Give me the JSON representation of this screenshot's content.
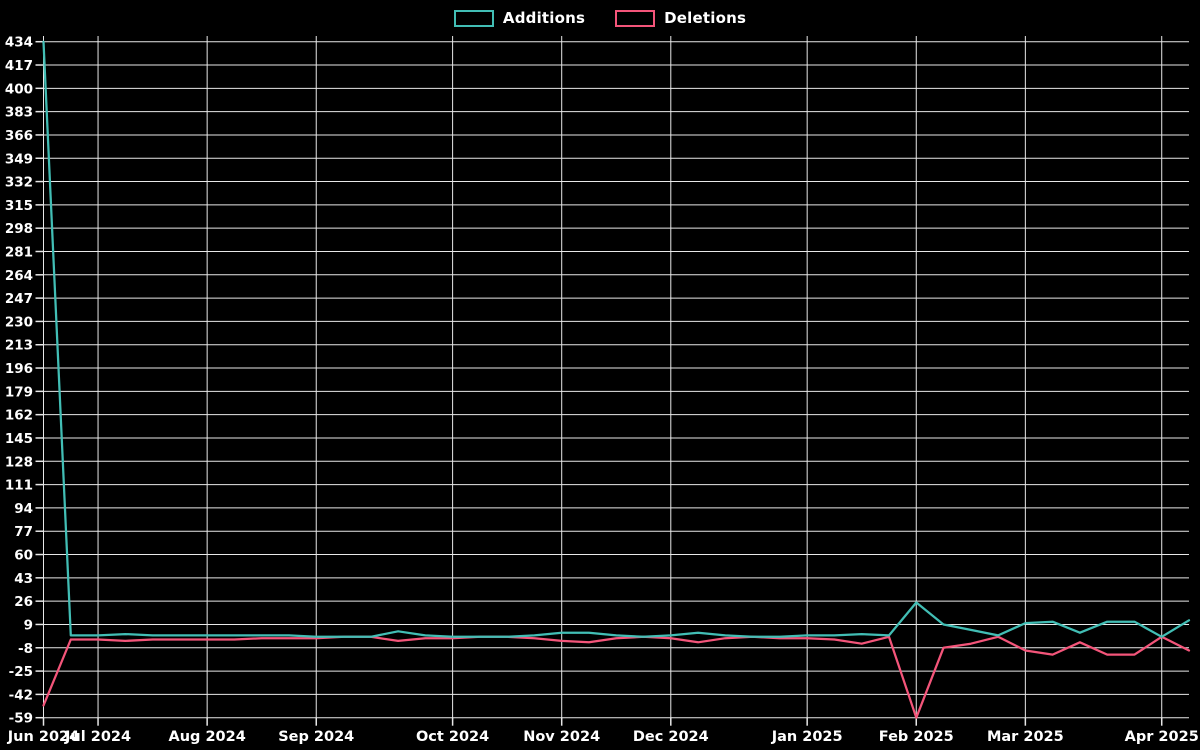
{
  "chart": {
    "background": "#000000",
    "grid_color": "#e8e8e8",
    "text_color": "#ffffff",
    "additions_color": "#42beb5",
    "deletions_color": "#f4557a"
  },
  "legend": {
    "items": [
      {
        "label": "Additions",
        "color": "#42beb5"
      },
      {
        "label": "Deletions",
        "color": "#f4557a"
      }
    ]
  },
  "chart_data": {
    "type": "line",
    "title": "",
    "xlabel": "",
    "ylabel": "",
    "grid": true,
    "legend_position": "top-center",
    "x_unit": "week",
    "ylim": [
      -59,
      434
    ],
    "y_tick_step": 17,
    "y_ticks": [
      434,
      417,
      400,
      383,
      366,
      349,
      332,
      315,
      298,
      281,
      264,
      247,
      230,
      213,
      196,
      179,
      162,
      145,
      128,
      111,
      94,
      77,
      60,
      43,
      26,
      9,
      -8,
      -25,
      -42,
      -59
    ],
    "x_ticks": [
      {
        "label": "Jun 2024",
        "week": 0
      },
      {
        "label": "Jul 2024",
        "week": 2
      },
      {
        "label": "Aug 2024",
        "week": 6
      },
      {
        "label": "Sep 2024",
        "week": 10
      },
      {
        "label": "Oct 2024",
        "week": 15
      },
      {
        "label": "Nov 2024",
        "week": 19
      },
      {
        "label": "Dec 2024",
        "week": 23
      },
      {
        "label": "Jan 2025",
        "week": 28
      },
      {
        "label": "Feb 2025",
        "week": 32
      },
      {
        "label": "Mar 2025",
        "week": 36
      },
      {
        "label": "Apr 2025",
        "week": 41
      }
    ],
    "series": [
      {
        "name": "Additions",
        "color": "#42beb5",
        "values": [
          434,
          1,
          1,
          2,
          1,
          1,
          1,
          1,
          1,
          1,
          0,
          0,
          0,
          4,
          1,
          0,
          0,
          0,
          1,
          3,
          3,
          1,
          0,
          1,
          3,
          1,
          0,
          0,
          1,
          1,
          2,
          1,
          25,
          9,
          5,
          1,
          10,
          11,
          3,
          11,
          11,
          0,
          12
        ]
      },
      {
        "name": "Deletions",
        "color": "#f4557a",
        "values": [
          -50,
          -2,
          -2,
          -3,
          -2,
          -2,
          -2,
          -2,
          -1,
          -1,
          -1,
          0,
          0,
          -3,
          -1,
          -1,
          0,
          0,
          -1,
          -3,
          -4,
          -1,
          0,
          -1,
          -4,
          -1,
          0,
          -1,
          -1,
          -2,
          -5,
          0,
          -59,
          -8,
          -5,
          0,
          -10,
          -13,
          -4,
          -13,
          -13,
          0,
          -10
        ]
      }
    ]
  }
}
